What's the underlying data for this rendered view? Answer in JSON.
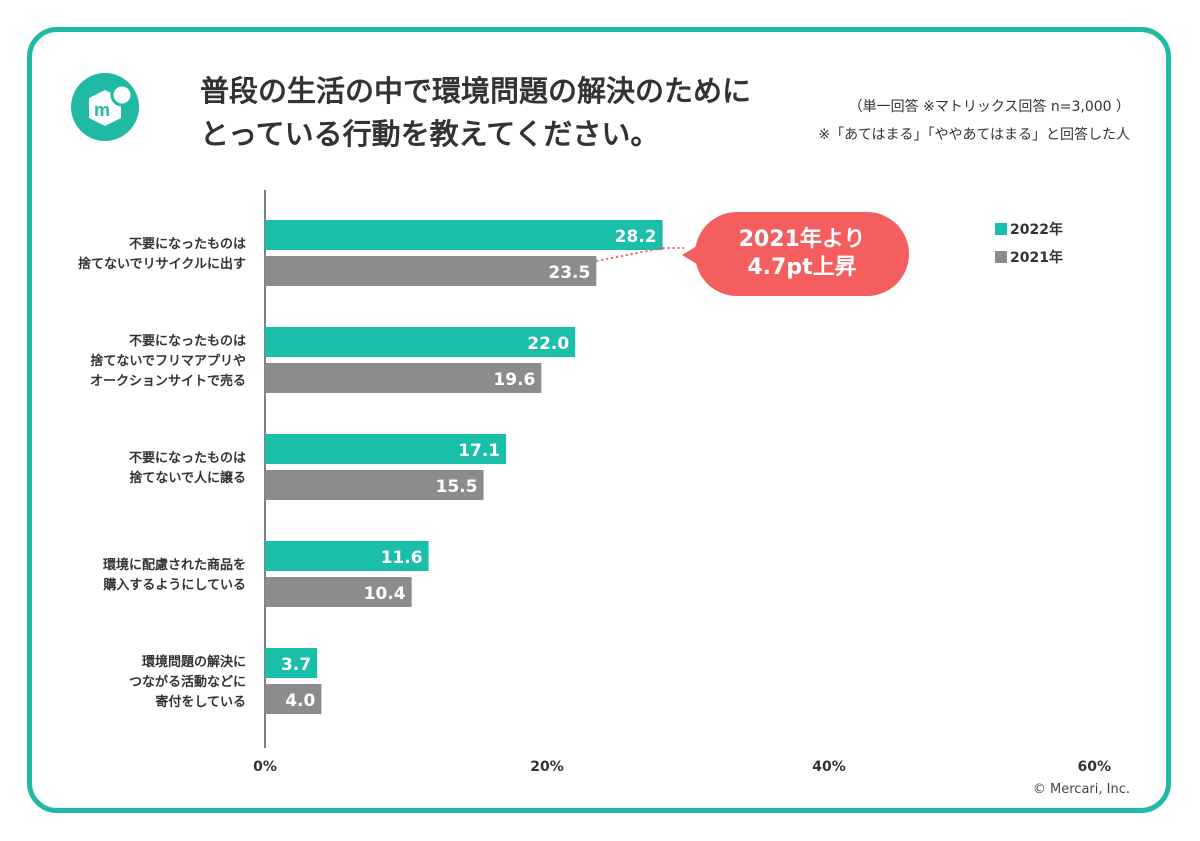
{
  "title_lines": [
    "普段の生活の中で環境問題の解決のために",
    "とっている行動を教えてください。"
  ],
  "notes": {
    "line1": "（単一回答 ※マトリックス回答 n=3,000 ）",
    "line2": "※「あてはまる」「ややあてはまる」と回答した人"
  },
  "logo_letter": "m",
  "callout": {
    "line1": "2021年より",
    "line2": "4.7pt上昇"
  },
  "credit": "© Mercari, Inc.",
  "colors": {
    "frame": "#1fb9a4",
    "series_2022": "#1abfa9",
    "series_2021": "#8c8c8c",
    "callout": "#f45e5e"
  },
  "chart_data": {
    "type": "bar",
    "orientation": "horizontal",
    "categories": [
      [
        "不要になったものは",
        "捨てないでリサイクルに出す"
      ],
      [
        "不要になったものは",
        "捨てないでフリマアプリや",
        "オークションサイトで売る"
      ],
      [
        "不要になったものは",
        "捨てないで人に譲る"
      ],
      [
        "環境に配慮された商品を",
        "購入するようにしている"
      ],
      [
        "環境問題の解決に",
        "つながる活動などに",
        "寄付をしている"
      ]
    ],
    "series": [
      {
        "name": "2022年",
        "values": [
          28.2,
          22.0,
          17.1,
          11.6,
          3.7
        ],
        "labels": [
          "28.2",
          "22.0",
          "17.1",
          "11.6",
          "3.7"
        ]
      },
      {
        "name": "2021年",
        "values": [
          23.5,
          19.6,
          15.5,
          10.4,
          4.0
        ],
        "labels": [
          "23.5",
          "19.6",
          "15.5",
          "10.4",
          "4.0"
        ]
      }
    ],
    "xlim": [
      0,
      60
    ],
    "xticks": [
      "0%",
      "20%",
      "40%",
      "60%"
    ],
    "legend_position": "top-right"
  }
}
